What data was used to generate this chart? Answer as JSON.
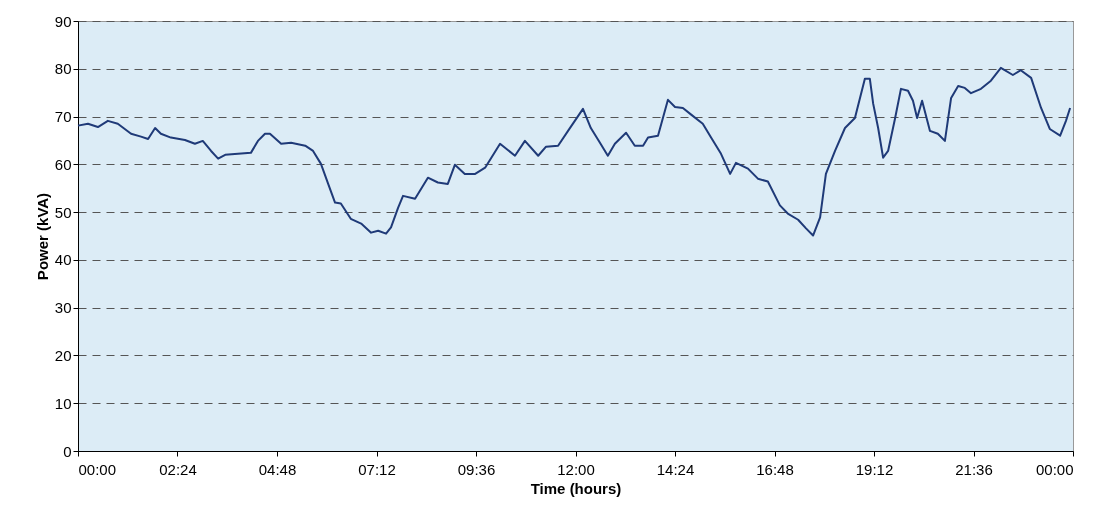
{
  "chart_data": {
    "type": "line",
    "xlabel": "Time (hours)",
    "ylabel": "Power (kVA)",
    "x": [
      0,
      0.24,
      0.48,
      0.72,
      0.96,
      1.28,
      1.52,
      1.69,
      1.86,
      2.0,
      2.24,
      2.58,
      2.82,
      3.01,
      3.21,
      3.38,
      3.55,
      3.86,
      4.17,
      4.34,
      4.51,
      4.63,
      4.9,
      5.14,
      5.48,
      5.67,
      5.86,
      6.03,
      6.2,
      6.34,
      6.58,
      6.83,
      7.07,
      7.24,
      7.43,
      7.55,
      7.72,
      7.84,
      8.13,
      8.44,
      8.68,
      8.92,
      9.09,
      9.33,
      9.58,
      9.82,
      10.18,
      10.54,
      10.78,
      11.1,
      11.29,
      11.58,
      11.82,
      12.18,
      12.37,
      12.59,
      12.78,
      12.95,
      13.22,
      13.43,
      13.63,
      13.75,
      13.99,
      14.23,
      14.4,
      14.59,
      14.79,
      15.07,
      15.27,
      15.51,
      15.73,
      15.87,
      16.16,
      16.4,
      16.64,
      16.93,
      17.12,
      17.37,
      17.56,
      17.73,
      17.9,
      18.04,
      18.26,
      18.5,
      18.74,
      18.98,
      19.1,
      19.18,
      19.3,
      19.42,
      19.54,
      19.71,
      19.85,
      20.02,
      20.14,
      20.24,
      20.36,
      20.55,
      20.74,
      20.91,
      21.06,
      21.23,
      21.39,
      21.54,
      21.78,
      22.02,
      22.26,
      22.55,
      22.74,
      22.99,
      23.23,
      23.44,
      23.69,
      23.83,
      23.93
    ],
    "series": [
      {
        "color": "#1f3a78",
        "values": [
          68.1,
          68.5,
          67.8,
          69.1,
          68.5,
          66.4,
          65.8,
          65.3,
          67.6,
          66.4,
          65.6,
          65.1,
          64.3,
          64.9,
          62.8,
          61.2,
          62.0,
          62.2,
          62.4,
          64.9,
          66.4,
          66.4,
          64.3,
          64.5,
          63.9,
          62.8,
          60.1,
          56.0,
          52.0,
          51.8,
          48.6,
          47.6,
          45.7,
          46.1,
          45.5,
          46.8,
          50.9,
          53.4,
          52.8,
          57.2,
          56.2,
          55.9,
          59.9,
          58.0,
          58.0,
          59.3,
          64.3,
          61.8,
          64.9,
          61.8,
          63.7,
          63.9,
          67.0,
          71.6,
          67.6,
          64.5,
          61.8,
          64.3,
          66.6,
          63.9,
          63.9,
          65.6,
          66.0,
          73.5,
          72.0,
          71.8,
          70.4,
          68.5,
          65.6,
          62.2,
          58.0,
          60.3,
          59.1,
          57.0,
          56.4,
          51.4,
          49.7,
          48.4,
          46.6,
          45.1,
          48.9,
          58.0,
          62.8,
          67.6,
          69.7,
          77.9,
          77.9,
          72.7,
          67.6,
          61.4,
          62.8,
          69.7,
          75.8,
          75.4,
          73.3,
          69.7,
          73.3,
          67.0,
          66.4,
          64.9,
          73.9,
          76.4,
          76.0,
          74.9,
          75.8,
          77.5,
          80.2,
          78.7,
          79.7,
          78.1,
          71.8,
          67.4,
          66.0,
          69.1,
          71.8
        ]
      }
    ],
    "xlim": [
      0,
      24
    ],
    "xticks": [
      {
        "value": 0,
        "label": "00:00"
      },
      {
        "value": 2.4,
        "label": "02:24"
      },
      {
        "value": 4.8,
        "label": "04:48"
      },
      {
        "value": 7.2,
        "label": "07:12"
      },
      {
        "value": 9.6,
        "label": "09:36"
      },
      {
        "value": 12,
        "label": "12:00"
      },
      {
        "value": 14.4,
        "label": "14:24"
      },
      {
        "value": 16.8,
        "label": "16:48"
      },
      {
        "value": 19.2,
        "label": "19:12"
      },
      {
        "value": 21.6,
        "label": "21:36"
      },
      {
        "value": 24,
        "label": "00:00"
      }
    ],
    "ylim": [
      0,
      90
    ],
    "yticks": [
      0,
      10,
      20,
      30,
      40,
      50,
      60,
      70,
      80,
      90
    ],
    "grid": "y",
    "marker": "none",
    "line_style": "solid"
  }
}
